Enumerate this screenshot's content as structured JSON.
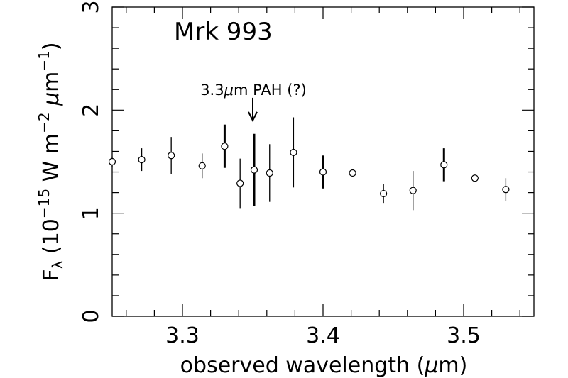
{
  "chart_data": {
    "type": "scatter",
    "title": "Mrk 993",
    "xlabel_text": "observed wavelength (",
    "xlabel_unit_symbol": "μ",
    "xlabel_unit": "m)",
    "ylabel_F": "F",
    "ylabel_sub": "λ",
    "ylabel_open": " (10",
    "ylabel_exp1": "−15",
    "ylabel_mid": " W m",
    "ylabel_exp2": "−2",
    "ylabel_mu": " μ",
    "ylabel_m": "m",
    "ylabel_exp3": "−1",
    "ylabel_close": ")",
    "annotation": {
      "num": "3.3",
      "mu": "μ",
      "rest": "m PAH (?)",
      "x": 3.35,
      "y_arrow_tip": 1.9,
      "y_arrow_tail": 2.12
    },
    "xlim": [
      3.25,
      3.55
    ],
    "ylim": [
      0,
      3
    ],
    "x_ticks": [
      3.3,
      3.4,
      3.5
    ],
    "x_tick_labels": [
      "3.3",
      "3.4",
      "3.5"
    ],
    "y_ticks": [
      0,
      1,
      2,
      3
    ],
    "y_tick_labels": [
      "0",
      "1",
      "2",
      "3"
    ],
    "points": [
      {
        "x": 3.25,
        "y": 1.5,
        "err": 0.05,
        "bold": false
      },
      {
        "x": 3.271,
        "y": 1.52,
        "err": 0.11,
        "bold": false
      },
      {
        "x": 3.292,
        "y": 1.56,
        "err": 0.18,
        "bold": false
      },
      {
        "x": 3.314,
        "y": 1.46,
        "err": 0.12,
        "bold": false
      },
      {
        "x": 3.33,
        "y": 1.65,
        "err": 0.21,
        "bold": true
      },
      {
        "x": 3.341,
        "y": 1.29,
        "err": 0.24,
        "bold": false
      },
      {
        "x": 3.351,
        "y": 1.42,
        "err": 0.35,
        "bold": true
      },
      {
        "x": 3.362,
        "y": 1.39,
        "err": 0.28,
        "bold": false
      },
      {
        "x": 3.379,
        "y": 1.59,
        "err": 0.34,
        "bold": false
      },
      {
        "x": 3.4,
        "y": 1.4,
        "err": 0.16,
        "bold": true
      },
      {
        "x": 3.421,
        "y": 1.39,
        "err": 0.04,
        "bold": false
      },
      {
        "x": 3.443,
        "y": 1.19,
        "err": 0.09,
        "bold": false
      },
      {
        "x": 3.464,
        "y": 1.22,
        "err": 0.19,
        "bold": false
      },
      {
        "x": 3.486,
        "y": 1.47,
        "err": 0.16,
        "bold": true
      },
      {
        "x": 3.508,
        "y": 1.34,
        "err": 0.03,
        "bold": false
      },
      {
        "x": 3.53,
        "y": 1.23,
        "err": 0.11,
        "bold": false
      }
    ]
  }
}
